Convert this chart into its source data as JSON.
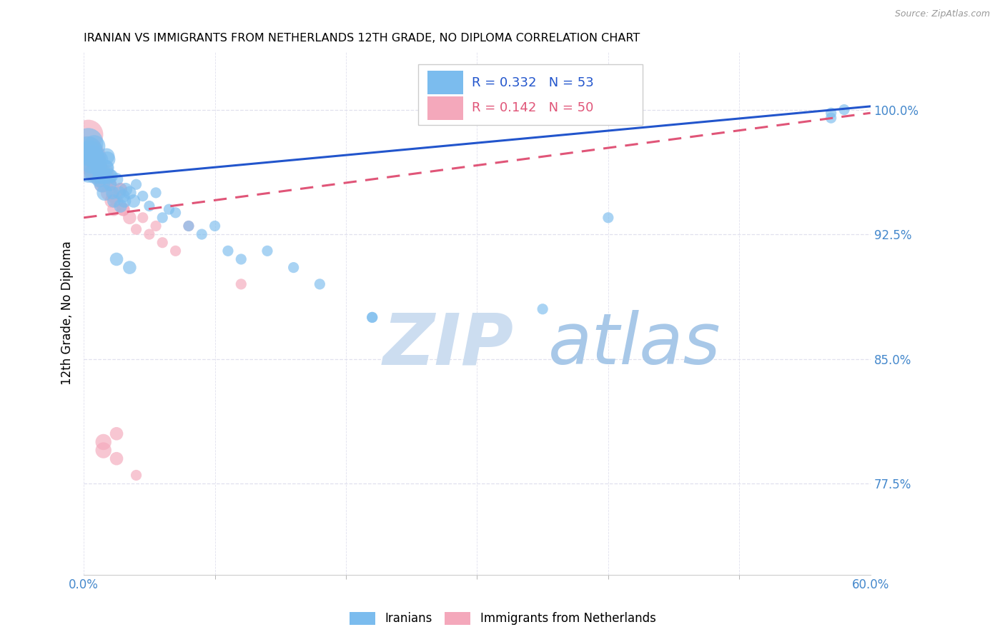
{
  "title": "IRANIAN VS IMMIGRANTS FROM NETHERLANDS 12TH GRADE, NO DIPLOMA CORRELATION CHART",
  "source": "Source: ZipAtlas.com",
  "ylabel": "12th Grade, No Diploma",
  "xlim": [
    0.0,
    60.0
  ],
  "ylim": [
    72.0,
    103.5
  ],
  "xtick_positions": [
    0.0,
    60.0
  ],
  "xtick_labels": [
    "0.0%",
    "60.0%"
  ],
  "ytick_positions": [
    77.5,
    85.0,
    92.5,
    100.0
  ],
  "ytick_labels": [
    "77.5%",
    "85.0%",
    "92.5%",
    "100.0%"
  ],
  "legend_blue_label": "Iranians",
  "legend_pink_label": "Immigrants from Netherlands",
  "legend_blue_R": "R = 0.332",
  "legend_blue_N": "N = 53",
  "legend_pink_R": "R = 0.142",
  "legend_pink_N": "N = 50",
  "blue_color": "#7bbcee",
  "pink_color": "#f4a8bb",
  "blue_line_color": "#2255cc",
  "pink_line_color": "#e05578",
  "axis_tick_color": "#4488cc",
  "grid_color": "#e0e0ee",
  "watermark_text": "ZIPatlas",
  "watermark_color": "#cce0f5",
  "background_color": "#ffffff",
  "blue_x": [
    0.4,
    0.5,
    0.6,
    0.7,
    0.8,
    0.9,
    1.0,
    1.1,
    1.2,
    1.3,
    1.4,
    1.5,
    1.6,
    1.7,
    1.8,
    1.9,
    2.0,
    2.1,
    2.2,
    2.3,
    2.5,
    2.7,
    3.0,
    3.2,
    3.5,
    3.8,
    4.0,
    4.5,
    5.0,
    5.5,
    6.0,
    6.5,
    7.0,
    8.0,
    9.0,
    10.0,
    11.0,
    12.0,
    14.0,
    16.0,
    18.0,
    22.0,
    0.3,
    0.35,
    1.15,
    1.25,
    1.55,
    1.65,
    1.75,
    2.8,
    3.1,
    40.0,
    57.0
  ],
  "blue_y": [
    96.5,
    97.5,
    96.8,
    97.2,
    97.8,
    96.2,
    96.5,
    97.0,
    95.8,
    96.0,
    95.5,
    96.2,
    95.0,
    96.5,
    97.0,
    96.0,
    95.5,
    96.0,
    95.0,
    94.5,
    95.8,
    95.0,
    94.8,
    95.2,
    95.0,
    94.5,
    95.5,
    94.8,
    94.2,
    95.0,
    93.5,
    94.0,
    93.8,
    93.0,
    92.5,
    93.0,
    91.5,
    91.0,
    91.5,
    90.5,
    89.5,
    87.5,
    97.5,
    98.0,
    96.5,
    97.0,
    96.0,
    96.5,
    97.2,
    94.2,
    94.5,
    93.5,
    99.8
  ],
  "pink_x": [
    0.3,
    0.35,
    0.4,
    0.5,
    0.6,
    0.7,
    0.8,
    0.9,
    1.0,
    1.1,
    1.2,
    1.3,
    1.4,
    1.5,
    1.6,
    1.7,
    1.8,
    1.9,
    2.0,
    2.2,
    2.5,
    2.8,
    3.0,
    3.5,
    4.0,
    4.5,
    5.0,
    5.5,
    6.0,
    7.0,
    8.0,
    0.45,
    0.55,
    0.65,
    0.75,
    0.85,
    1.05,
    1.15,
    1.25,
    1.35,
    1.55,
    1.65,
    2.1,
    2.3,
    12.0,
    1.0,
    2.0,
    3.0,
    1.8,
    2.8
  ],
  "pink_y": [
    97.5,
    98.5,
    97.0,
    96.5,
    97.2,
    96.8,
    97.0,
    96.5,
    96.0,
    96.5,
    96.2,
    95.8,
    95.5,
    96.0,
    95.5,
    96.2,
    95.8,
    95.0,
    95.5,
    94.8,
    94.5,
    95.2,
    94.0,
    93.5,
    92.8,
    93.5,
    92.5,
    93.0,
    92.0,
    91.5,
    93.0,
    97.0,
    96.8,
    97.5,
    96.5,
    97.2,
    96.2,
    96.8,
    96.5,
    96.0,
    95.8,
    96.0,
    94.5,
    94.0,
    89.5,
    96.0,
    95.5,
    94.0,
    95.8,
    95.2
  ],
  "blue_x_outliers": [
    2.5,
    3.5,
    22.0,
    35.0,
    57.0,
    58.0
  ],
  "blue_y_outliers": [
    91.0,
    90.5,
    87.5,
    88.0,
    99.5,
    100.0
  ],
  "pink_x_outliers": [
    1.5,
    2.5,
    4.0,
    1.5,
    2.5
  ],
  "pink_y_outliers": [
    79.5,
    80.5,
    78.0,
    80.0,
    79.0
  ],
  "blue_trend_y0": 95.8,
  "blue_trend_y1": 100.2,
  "pink_trend_y0": 93.5,
  "pink_trend_y1": 99.8
}
